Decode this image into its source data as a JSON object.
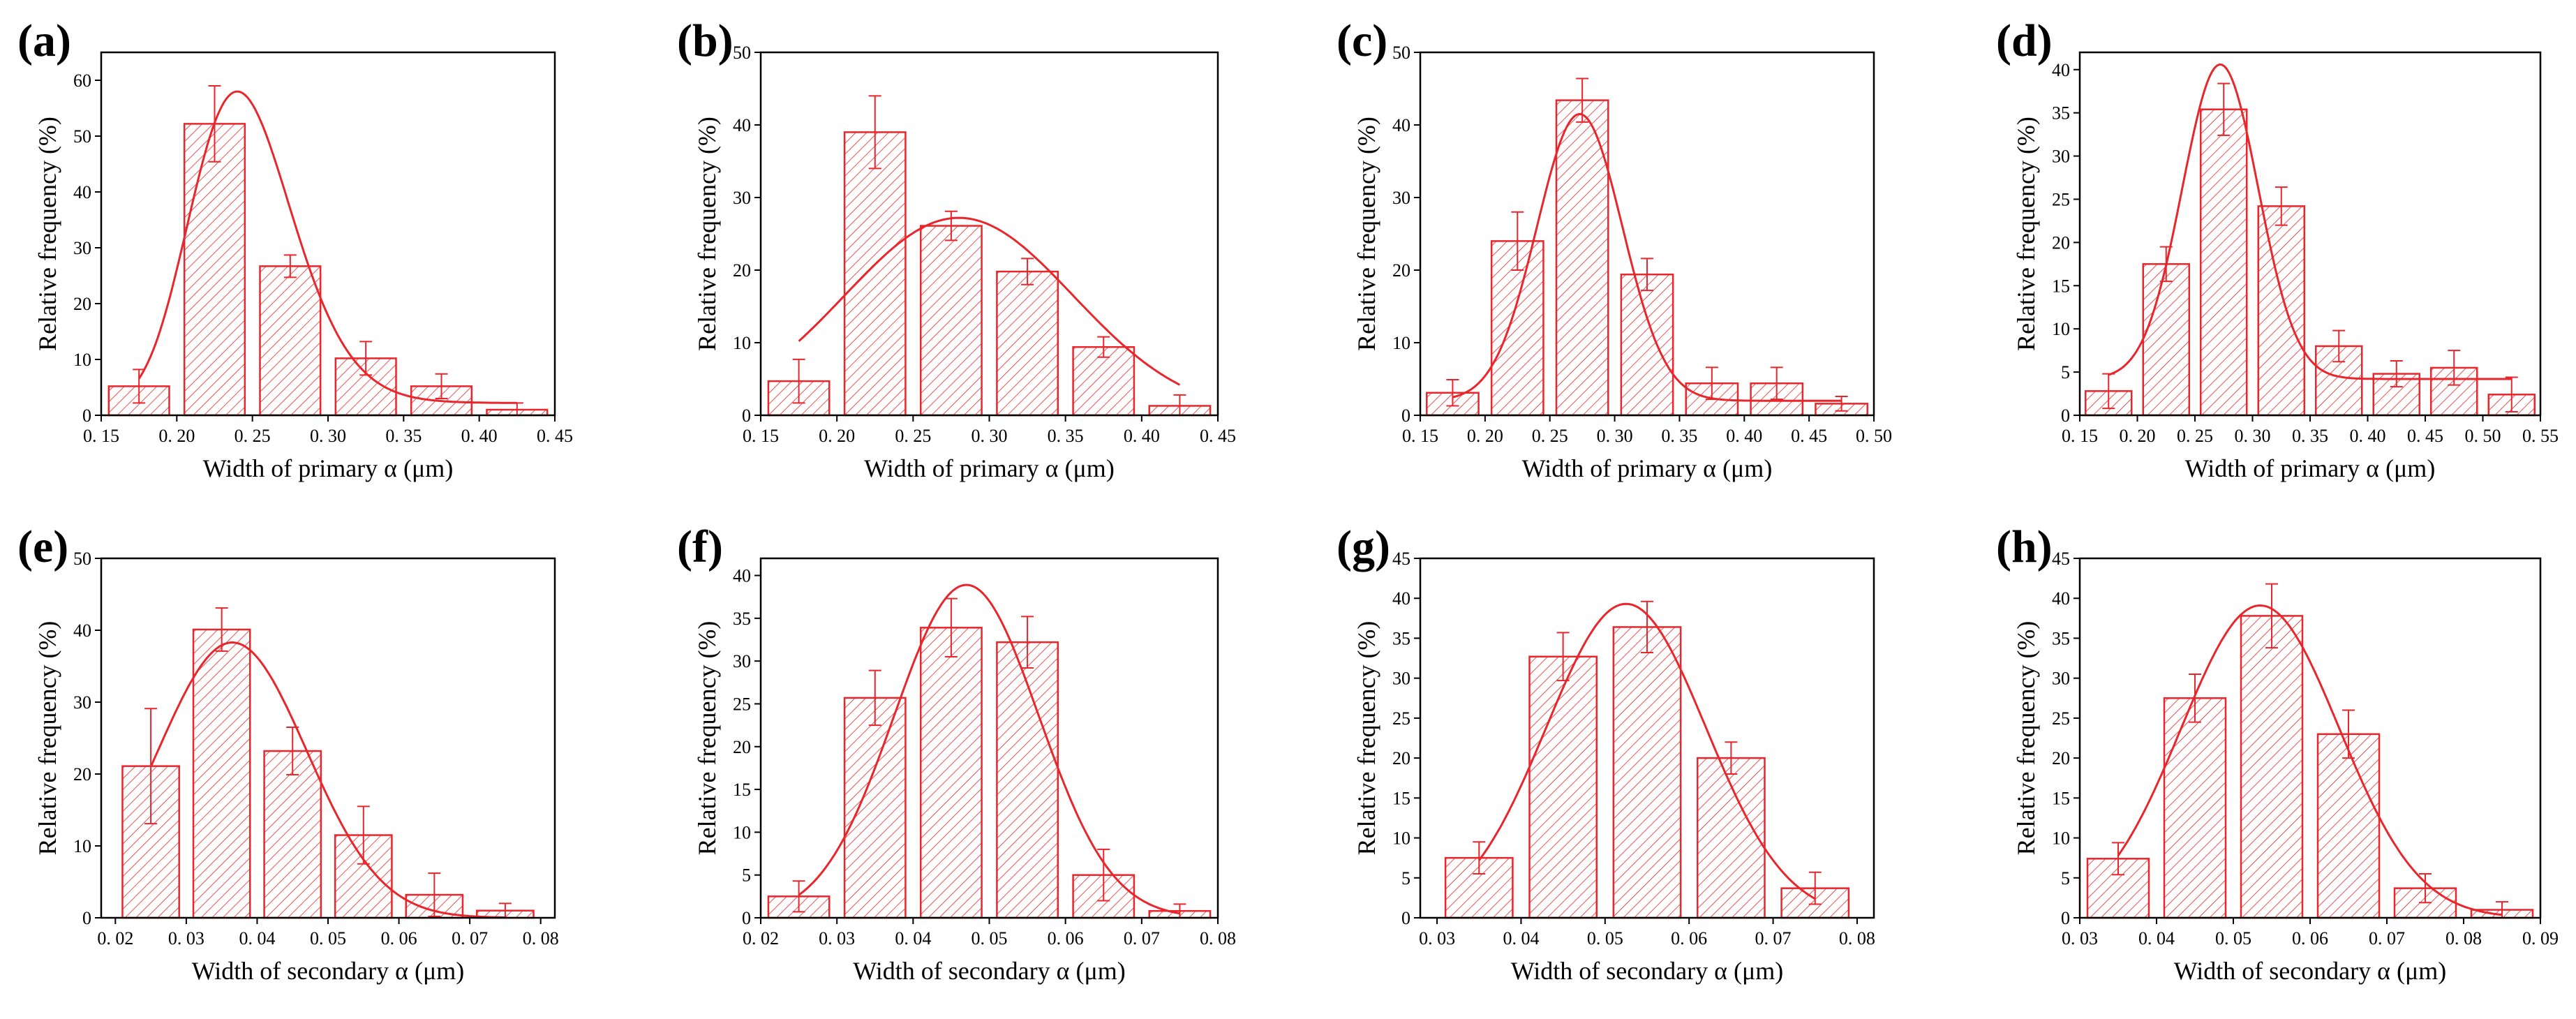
{
  "style": {
    "accent": "#e8262b"
  },
  "ylabel": "Relative frequency (%)",
  "chart_data": [
    {
      "label": "(a)",
      "type": "bar",
      "title": "",
      "xlabel": "Width of primary α (μm)",
      "ylabel": "Relative frequency (%)",
      "xlim": [
        0.15,
        0.45
      ],
      "ylim": [
        0,
        65
      ],
      "xstep": 0.05,
      "ystep": 10,
      "decimals": 2,
      "xticks": [
        "0. 15",
        "0. 20",
        "0. 25",
        "0. 30",
        "0. 35",
        "0. 40",
        "0. 45"
      ],
      "yticks": [
        "0",
        "10",
        "20",
        "30",
        "40",
        "50",
        "60"
      ],
      "bar_width": 0.04,
      "centers": [
        0.175,
        0.225,
        0.275,
        0.325,
        0.375,
        0.425
      ],
      "values": [
        5.2,
        52.2,
        26.7,
        10.2,
        5.2,
        1.0
      ],
      "errors": [
        3.0,
        6.8,
        2.0,
        3.0,
        2.2,
        1.2
      ],
      "fit": {
        "type": "lognormal",
        "x0": 0.175,
        "x1": 0.425,
        "peak_x": 0.24,
        "peak_y": 58,
        "sigma": 0.14,
        "baseline": 2.2
      }
    },
    {
      "label": "(b)",
      "type": "bar",
      "title": "",
      "xlabel": "Width of primary α (μm)",
      "ylabel": "Relative frequency (%)",
      "xlim": [
        0.15,
        0.45
      ],
      "ylim": [
        0,
        50
      ],
      "xstep": 0.05,
      "ystep": 10,
      "decimals": 2,
      "xticks": [
        "0. 15",
        "0. 20",
        "0. 25",
        "0. 30",
        "0. 35",
        "0. 40",
        "0. 45"
      ],
      "yticks": [
        "0",
        "10",
        "20",
        "30",
        "40",
        "50"
      ],
      "bar_width": 0.04,
      "centers": [
        0.175,
        0.225,
        0.275,
        0.325,
        0.375,
        0.425
      ],
      "values": [
        4.7,
        39.0,
        26.1,
        19.8,
        9.4,
        1.3
      ],
      "errors": [
        3.0,
        5.0,
        2.0,
        1.8,
        1.4,
        1.5
      ],
      "fit": {
        "type": "gauss",
        "x0": 0.175,
        "x1": 0.425,
        "peak_x": 0.28,
        "peak_y": 27.2,
        "sigma": 0.075,
        "baseline": 0
      }
    },
    {
      "label": "(c)",
      "type": "bar",
      "title": "",
      "xlabel": "Width of primary α (μm)",
      "ylabel": "Relative frequency (%)",
      "xlim": [
        0.15,
        0.5
      ],
      "ylim": [
        0,
        50
      ],
      "xstep": 0.05,
      "ystep": 10,
      "decimals": 2,
      "xticks": [
        "0. 15",
        "0. 20",
        "0. 25",
        "0. 30",
        "0. 35",
        "0. 40",
        "0. 45",
        "0. 50"
      ],
      "yticks": [
        "0",
        "10",
        "20",
        "30",
        "40",
        "50"
      ],
      "bar_width": 0.04,
      "centers": [
        0.175,
        0.225,
        0.275,
        0.325,
        0.375,
        0.425,
        0.475
      ],
      "values": [
        3.1,
        24.0,
        43.4,
        19.4,
        4.4,
        4.4,
        1.6
      ],
      "errors": [
        1.8,
        4.0,
        3.0,
        2.2,
        2.2,
        2.2,
        1.0
      ],
      "fit": {
        "type": "gauss",
        "x0": 0.175,
        "x1": 0.475,
        "peak_x": 0.273,
        "peak_y": 41.5,
        "sigma": 0.033,
        "baseline": 2.0
      }
    },
    {
      "label": "(d)",
      "type": "bar",
      "title": "",
      "xlabel": "Width of primary α (μm)",
      "ylabel": "Relative frequency (%)",
      "xlim": [
        0.15,
        0.55
      ],
      "ylim": [
        0,
        42
      ],
      "xstep": 0.05,
      "ystep": 5,
      "decimals": 2,
      "xticks": [
        "0. 15",
        "0. 20",
        "0. 25",
        "0. 30",
        "0. 35",
        "0. 40",
        "0. 45",
        "0. 50",
        "0. 55"
      ],
      "yticks": [
        "0",
        "5",
        "10",
        "15",
        "20",
        "25",
        "30",
        "35",
        "40"
      ],
      "bar_width": 0.04,
      "centers": [
        0.175,
        0.225,
        0.275,
        0.325,
        0.375,
        0.425,
        0.475,
        0.525
      ],
      "values": [
        2.8,
        17.5,
        35.4,
        24.2,
        8.0,
        4.8,
        5.5,
        2.4
      ],
      "errors": [
        2.0,
        2.0,
        3.0,
        2.2,
        1.8,
        1.5,
        2.0,
        2.0
      ],
      "fit": {
        "type": "gauss",
        "x0": 0.175,
        "x1": 0.525,
        "peak_x": 0.272,
        "peak_y": 40.6,
        "sigma": 0.033,
        "baseline": 4.2
      }
    },
    {
      "label": "(e)",
      "type": "bar",
      "title": "",
      "xlabel": "Width of secondary α (μm)",
      "ylabel": "Relative frequency (%)",
      "xlim": [
        0.018,
        0.082
      ],
      "ylim": [
        0,
        50
      ],
      "xstep": 0.01,
      "ystep": 10,
      "decimals": 2,
      "xticks": [
        "0. 02",
        "0. 03",
        "0. 04",
        "0. 05",
        "0. 06",
        "0. 07",
        "0. 08"
      ],
      "yticks": [
        "0",
        "10",
        "20",
        "30",
        "40",
        "50"
      ],
      "bar_width": 0.008,
      "centers": [
        0.025,
        0.035,
        0.045,
        0.055,
        0.065,
        0.075
      ],
      "values": [
        21.1,
        40.1,
        23.2,
        11.5,
        3.2,
        1.0
      ],
      "errors": [
        8.0,
        3.0,
        3.3,
        4.0,
        3.0,
        1.0
      ],
      "fit": {
        "type": "gauss",
        "x0": 0.025,
        "x1": 0.075,
        "peak_x": 0.0365,
        "peak_y": 38.3,
        "sigma": 0.0105,
        "baseline": 0
      }
    },
    {
      "label": "(f)",
      "type": "bar",
      "title": "",
      "xlabel": "Width of secondary α (μm)",
      "ylabel": "Relative frequency (%)",
      "xlim": [
        0.02,
        0.08
      ],
      "ylim": [
        0,
        42
      ],
      "xstep": 0.01,
      "ystep": 5,
      "decimals": 2,
      "xticks": [
        "0. 02",
        "0. 03",
        "0. 04",
        "0. 05",
        "0. 06",
        "0. 07",
        "0. 08"
      ],
      "yticks": [
        "0",
        "5",
        "10",
        "15",
        "20",
        "25",
        "30",
        "35",
        "40"
      ],
      "bar_width": 0.008,
      "centers": [
        0.025,
        0.035,
        0.045,
        0.055,
        0.065,
        0.075
      ],
      "values": [
        2.5,
        25.7,
        33.9,
        32.2,
        5.0,
        0.8
      ],
      "errors": [
        1.8,
        3.2,
        3.4,
        3.0,
        3.0,
        0.8
      ],
      "fit": {
        "type": "gauss",
        "x0": 0.025,
        "x1": 0.075,
        "peak_x": 0.047,
        "peak_y": 38.9,
        "sigma": 0.0095,
        "baseline": 0
      }
    },
    {
      "label": "(g)",
      "type": "bar",
      "title": "",
      "xlabel": "Width of secondary α (μm)",
      "ylabel": "Relative frequency (%)",
      "xlim": [
        0.028,
        0.082
      ],
      "ylim": [
        0,
        45
      ],
      "xstep": 0.01,
      "ystep": 5,
      "decimals": 2,
      "xticks": [
        "0. 03",
        "0. 04",
        "0. 05",
        "0. 06",
        "0. 07",
        "0. 08"
      ],
      "yticks": [
        "0",
        "5",
        "10",
        "15",
        "20",
        "25",
        "30",
        "35",
        "40",
        "45"
      ],
      "bar_width": 0.008,
      "centers": [
        0.035,
        0.045,
        0.055,
        0.065,
        0.075
      ],
      "values": [
        7.5,
        32.7,
        36.4,
        20.0,
        3.7
      ],
      "errors": [
        2.0,
        3.0,
        3.2,
        2.0,
        2.0
      ],
      "fit": {
        "type": "gauss",
        "x0": 0.035,
        "x1": 0.075,
        "peak_x": 0.0525,
        "peak_y": 39.3,
        "sigma": 0.0095,
        "baseline": 0
      }
    },
    {
      "label": "(h)",
      "type": "bar",
      "title": "",
      "xlabel": "Width of secondary α (μm)",
      "ylabel": "Relative frequency (%)",
      "xlim": [
        0.03,
        0.09
      ],
      "ylim": [
        0,
        45
      ],
      "xstep": 0.01,
      "ystep": 5,
      "decimals": 2,
      "xticks": [
        "0. 03",
        "0. 04",
        "0. 05",
        "0. 06",
        "0. 07",
        "0. 08",
        "0. 09"
      ],
      "yticks": [
        "0",
        "5",
        "10",
        "15",
        "20",
        "25",
        "30",
        "35",
        "40",
        "45"
      ],
      "bar_width": 0.008,
      "centers": [
        0.035,
        0.045,
        0.055,
        0.065,
        0.075,
        0.085
      ],
      "values": [
        7.4,
        27.5,
        37.8,
        23.0,
        3.7,
        1.0
      ],
      "errors": [
        2.0,
        3.0,
        4.0,
        3.0,
        1.8,
        1.0
      ],
      "fit": {
        "type": "gauss",
        "x0": 0.035,
        "x1": 0.085,
        "peak_x": 0.0535,
        "peak_y": 39.1,
        "sigma": 0.0103,
        "baseline": 0
      }
    }
  ]
}
